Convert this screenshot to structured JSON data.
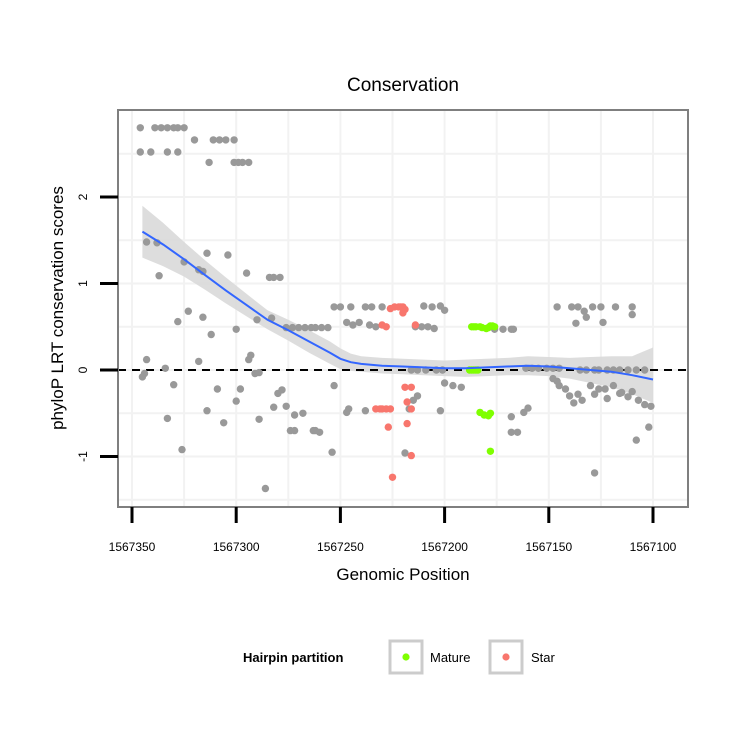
{
  "chart_data": {
    "type": "scatter",
    "title": "Conservation",
    "xlabel": "Genomic Position",
    "ylabel": "phyloP LRT conservation scores",
    "x_reversed": true,
    "xlim": [
      1567100,
      1567350
    ],
    "ylim": [
      -1.5,
      3.0
    ],
    "x_ticks": [
      1567350,
      1567300,
      1567250,
      1567200,
      1567150,
      1567100
    ],
    "x_tick_labels": [
      "1567350",
      "1567300",
      "1567250",
      "1567200",
      "1567150",
      "1567100"
    ],
    "y_ticks": [
      -1,
      0,
      1,
      2
    ],
    "y_tick_labels": [
      "-1",
      "0",
      "1",
      "2"
    ],
    "reference_line": {
      "y": 0,
      "style": "dashed"
    },
    "legend": {
      "title": "Hairpin partition",
      "entries": [
        "Mature",
        "Star"
      ],
      "placement": "bottom"
    },
    "colors": {
      "other": "#999999",
      "Mature": "#7fff00",
      "Star": "#f8766d",
      "smooth": "#3366ff",
      "band": "#d9d9d9",
      "panel_border": "#7f7f7f",
      "grid": "#f2f2f2"
    },
    "series": [
      {
        "name": "other",
        "points": [
          [
            1567346,
            2.8
          ],
          [
            1567339,
            2.8
          ],
          [
            1567336,
            2.8
          ],
          [
            1567333,
            2.8
          ],
          [
            1567330,
            2.8
          ],
          [
            1567328,
            2.8
          ],
          [
            1567325,
            2.8
          ],
          [
            1567346,
            2.52
          ],
          [
            1567341,
            2.52
          ],
          [
            1567333,
            2.52
          ],
          [
            1567328,
            2.52
          ],
          [
            1567320,
            2.66
          ],
          [
            1567311,
            2.66
          ],
          [
            1567308,
            2.66
          ],
          [
            1567305,
            2.66
          ],
          [
            1567301,
            2.66
          ],
          [
            1567313,
            2.4
          ],
          [
            1567301,
            2.4
          ],
          [
            1567299,
            2.4
          ],
          [
            1567297,
            2.4
          ],
          [
            1567294,
            2.4
          ],
          [
            1567343,
            1.48
          ],
          [
            1567338,
            1.47
          ],
          [
            1567337,
            1.09
          ],
          [
            1567325,
            1.25
          ],
          [
            1567318,
            1.16
          ],
          [
            1567316,
            1.14
          ],
          [
            1567314,
            1.35
          ],
          [
            1567304,
            1.33
          ],
          [
            1567295,
            1.12
          ],
          [
            1567284,
            1.07
          ],
          [
            1567282,
            1.07
          ],
          [
            1567279,
            1.07
          ],
          [
            1567328,
            0.56
          ],
          [
            1567323,
            0.68
          ],
          [
            1567316,
            0.61
          ],
          [
            1567312,
            0.41
          ],
          [
            1567300,
            0.47
          ],
          [
            1567290,
            0.58
          ],
          [
            1567283,
            0.6
          ],
          [
            1567344,
            -0.04
          ],
          [
            1567345,
            -0.08
          ],
          [
            1567343,
            0.12
          ],
          [
            1567334,
            0.02
          ],
          [
            1567330,
            -0.17
          ],
          [
            1567333,
            -0.56
          ],
          [
            1567326,
            -0.92
          ],
          [
            1567314,
            -0.47
          ],
          [
            1567318,
            0.1
          ],
          [
            1567309,
            -0.22
          ],
          [
            1567306,
            -0.61
          ],
          [
            1567300,
            -0.36
          ],
          [
            1567298,
            -0.22
          ],
          [
            1567294,
            0.12
          ],
          [
            1567293,
            0.17
          ],
          [
            1567291,
            -0.04
          ],
          [
            1567289,
            -0.03
          ],
          [
            1567289,
            -0.57
          ],
          [
            1567286,
            -1.37
          ],
          [
            1567282,
            -0.43
          ],
          [
            1567280,
            -0.27
          ],
          [
            1567278,
            -0.23
          ],
          [
            1567276,
            -0.42
          ],
          [
            1567274,
            -0.7
          ],
          [
            1567272,
            -0.7
          ],
          [
            1567272,
            -0.52
          ],
          [
            1567268,
            -0.5
          ],
          [
            1567263,
            -0.7
          ],
          [
            1567262,
            -0.7
          ],
          [
            1567260,
            -0.72
          ],
          [
            1567254,
            -0.95
          ],
          [
            1567276,
            0.49
          ],
          [
            1567273,
            0.49
          ],
          [
            1567270,
            0.49
          ],
          [
            1567267,
            0.49
          ],
          [
            1567264,
            0.49
          ],
          [
            1567262,
            0.49
          ],
          [
            1567259,
            0.49
          ],
          [
            1567256,
            0.49
          ],
          [
            1567253,
            0.73
          ],
          [
            1567250,
            0.73
          ],
          [
            1567245,
            0.73
          ],
          [
            1567238,
            0.73
          ],
          [
            1567235,
            0.73
          ],
          [
            1567230,
            0.73
          ],
          [
            1567247,
            0.55
          ],
          [
            1567244,
            0.52
          ],
          [
            1567241,
            0.55
          ],
          [
            1567236,
            0.52
          ],
          [
            1567233,
            0.5
          ],
          [
            1567253,
            -0.18
          ],
          [
            1567247,
            -0.49
          ],
          [
            1567246,
            -0.45
          ],
          [
            1567238,
            -0.47
          ],
          [
            1567210,
            0.74
          ],
          [
            1567206,
            0.73
          ],
          [
            1567202,
            0.74
          ],
          [
            1567200,
            0.69
          ],
          [
            1567214,
            0.5
          ],
          [
            1567211,
            0.5
          ],
          [
            1567208,
            0.5
          ],
          [
            1567205,
            0.48
          ],
          [
            1567216,
            0
          ],
          [
            1567213,
            0
          ],
          [
            1567209,
            0
          ],
          [
            1567204,
            0
          ],
          [
            1567201,
            0
          ],
          [
            1567217,
            -0.45
          ],
          [
            1567215,
            -0.35
          ],
          [
            1567213,
            -0.3
          ],
          [
            1567219,
            -0.96
          ],
          [
            1567202,
            -0.47
          ],
          [
            1567200,
            -0.15
          ],
          [
            1567196,
            -0.18
          ],
          [
            1567192,
            -0.2
          ],
          [
            1567176,
            0.47
          ],
          [
            1567172,
            0.47
          ],
          [
            1567168,
            0.47
          ],
          [
            1567167,
            0.47
          ],
          [
            1567168,
            -0.54
          ],
          [
            1567165,
            -0.72
          ],
          [
            1567168,
            -0.72
          ],
          [
            1567162,
            -0.49
          ],
          [
            1567160,
            -0.44
          ],
          [
            1567161,
            0.02
          ],
          [
            1567158,
            0.02
          ],
          [
            1567155,
            0.02
          ],
          [
            1567151,
            0.02
          ],
          [
            1567148,
            0.02
          ],
          [
            1567145,
            0.02
          ],
          [
            1567148,
            -0.1
          ],
          [
            1567146,
            -0.13
          ],
          [
            1567145,
            -0.18
          ],
          [
            1567142,
            -0.22
          ],
          [
            1567140,
            -0.3
          ],
          [
            1567138,
            -0.38
          ],
          [
            1567136,
            -0.28
          ],
          [
            1567134,
            -0.35
          ],
          [
            1567146,
            0.73
          ],
          [
            1567139,
            0.73
          ],
          [
            1567136,
            0.73
          ],
          [
            1567133,
            0.68
          ],
          [
            1567129,
            0.73
          ],
          [
            1567125,
            0.73
          ],
          [
            1567118,
            0.73
          ],
          [
            1567110,
            0.73
          ],
          [
            1567137,
            0.54
          ],
          [
            1567132,
            0.61
          ],
          [
            1567124,
            0.55
          ],
          [
            1567110,
            0.64
          ],
          [
            1567135,
            0
          ],
          [
            1567132,
            0
          ],
          [
            1567128,
            0
          ],
          [
            1567126,
            0
          ],
          [
            1567122,
            0
          ],
          [
            1567119,
            0
          ],
          [
            1567116,
            0
          ],
          [
            1567112,
            0
          ],
          [
            1567108,
            0
          ],
          [
            1567104,
            0
          ],
          [
            1567130,
            -0.18
          ],
          [
            1567126,
            -0.22
          ],
          [
            1567123,
            -0.22
          ],
          [
            1567119,
            -0.18
          ],
          [
            1567116,
            -0.27
          ],
          [
            1567112,
            -0.31
          ],
          [
            1567110,
            -0.25
          ],
          [
            1567107,
            -0.35
          ],
          [
            1567104,
            -0.4
          ],
          [
            1567101,
            -0.42
          ],
          [
            1567128,
            -0.28
          ],
          [
            1567122,
            -0.33
          ],
          [
            1567115,
            -0.26
          ],
          [
            1567128,
            -1.19
          ],
          [
            1567108,
            -0.81
          ],
          [
            1567102,
            -0.66
          ]
        ]
      },
      {
        "name": "Mature",
        "points": [
          [
            1567187,
            0.5
          ],
          [
            1567186,
            0.5
          ],
          [
            1567185,
            0.5
          ],
          [
            1567183,
            0.5
          ],
          [
            1567182,
            0.49
          ],
          [
            1567180,
            0.48
          ],
          [
            1567179,
            0.49
          ],
          [
            1567178,
            0.51
          ],
          [
            1567177,
            0.51
          ],
          [
            1567176,
            0.5
          ],
          [
            1567188,
            0
          ],
          [
            1567187,
            0
          ],
          [
            1567186,
            0
          ],
          [
            1567185,
            0
          ],
          [
            1567184,
            0
          ],
          [
            1567183,
            -0.49
          ],
          [
            1567181,
            -0.52
          ],
          [
            1567179,
            -0.53
          ],
          [
            1567178,
            -0.5
          ],
          [
            1567178,
            -0.94
          ]
        ]
      },
      {
        "name": "Star",
        "points": [
          [
            1567226,
            0.71
          ],
          [
            1567224,
            0.73
          ],
          [
            1567222,
            0.73
          ],
          [
            1567221,
            0.73
          ],
          [
            1567220,
            0.66
          ],
          [
            1567219,
            0.7
          ],
          [
            1567220,
            0.73
          ],
          [
            1567230,
            0.52
          ],
          [
            1567228,
            0.5
          ],
          [
            1567214,
            0.52
          ],
          [
            1567233,
            -0.45
          ],
          [
            1567231,
            -0.45
          ],
          [
            1567230,
            -0.45
          ],
          [
            1567228,
            -0.45
          ],
          [
            1567226,
            -0.45
          ],
          [
            1567227,
            -0.66
          ],
          [
            1567219,
            -0.2
          ],
          [
            1567216,
            -0.2
          ],
          [
            1567218,
            -0.37
          ],
          [
            1567216,
            -0.45
          ],
          [
            1567218,
            -0.62
          ],
          [
            1567216,
            -0.99
          ],
          [
            1567225,
            -1.24
          ]
        ]
      }
    ],
    "smooth": {
      "method": "loess",
      "x": [
        1567345,
        1567335,
        1567325,
        1567315,
        1567305,
        1567295,
        1567285,
        1567275,
        1567265,
        1567255,
        1567250,
        1567245,
        1567240,
        1567230,
        1567220,
        1567210,
        1567200,
        1567190,
        1567180,
        1567170,
        1567160,
        1567150,
        1567140,
        1567130,
        1567120,
        1567110,
        1567100
      ],
      "y": [
        1.6,
        1.45,
        1.28,
        1.1,
        0.92,
        0.75,
        0.58,
        0.46,
        0.33,
        0.2,
        0.13,
        0.09,
        0.07,
        0.05,
        0.04,
        0.03,
        0.02,
        0.02,
        0.03,
        0.04,
        0.05,
        0.04,
        0.02,
        0.0,
        -0.02,
        -0.06,
        -0.11
      ],
      "ci_low": [
        1.3,
        1.2,
        1.08,
        0.93,
        0.77,
        0.62,
        0.47,
        0.34,
        0.2,
        0.07,
        0.01,
        -0.01,
        -0.02,
        -0.04,
        -0.05,
        -0.06,
        -0.07,
        -0.08,
        -0.07,
        -0.06,
        -0.06,
        -0.07,
        -0.1,
        -0.15,
        -0.2,
        -0.28,
        -0.38
      ],
      "ci_high": [
        1.9,
        1.7,
        1.48,
        1.27,
        1.07,
        0.88,
        0.69,
        0.58,
        0.46,
        0.33,
        0.25,
        0.19,
        0.16,
        0.14,
        0.13,
        0.12,
        0.11,
        0.12,
        0.13,
        0.14,
        0.16,
        0.15,
        0.14,
        0.15,
        0.16,
        0.16,
        0.26
      ]
    }
  }
}
